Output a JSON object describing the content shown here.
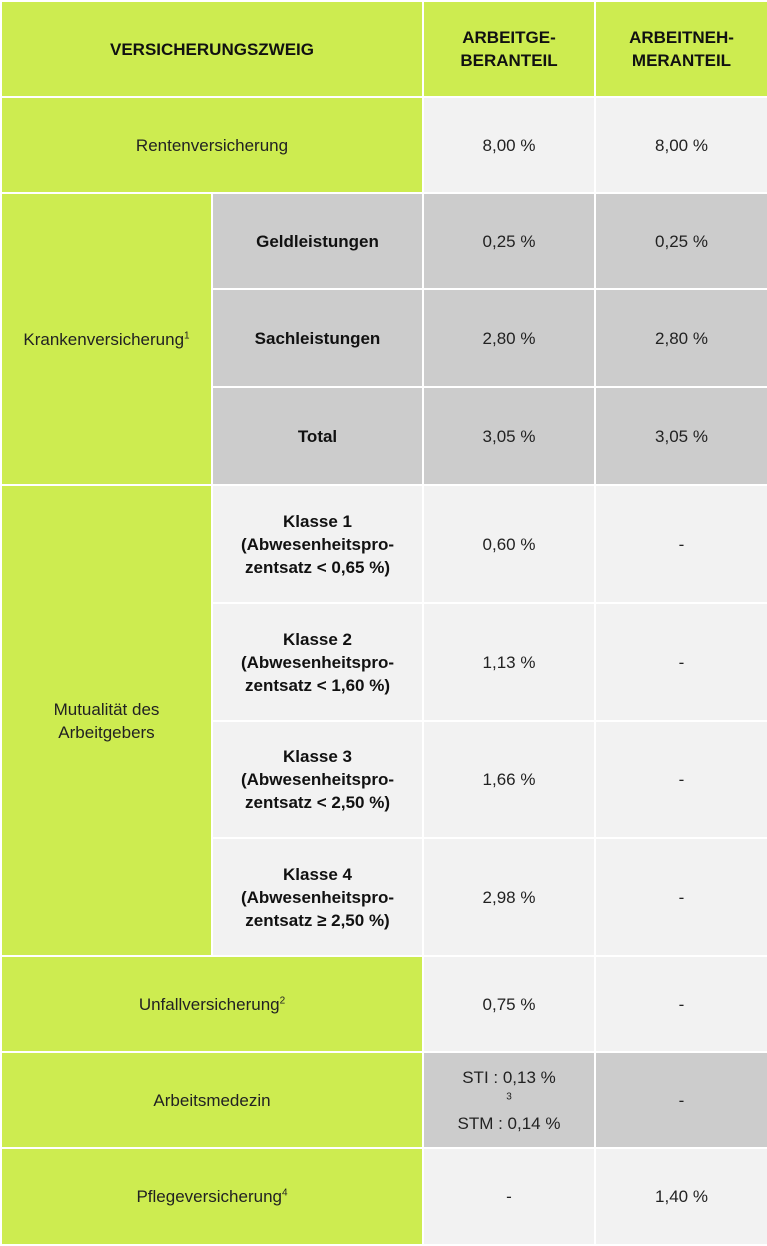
{
  "header": {
    "branch": "VERSICHERUNGSZWEIG",
    "employer": [
      "ARBEITGE-",
      "BERANTEIL"
    ],
    "employee": [
      "ARBEITNEH-",
      "MERANTEIL"
    ]
  },
  "rows": {
    "rente": {
      "label": "Rentenversicherung",
      "employer": "8,00 %",
      "employee": "8,00 %"
    },
    "kranken": {
      "label": "Krankenversicherung",
      "footnote": "1",
      "sub": [
        {
          "label": "Geldleistungen",
          "employer": "0,25 %",
          "employee": "0,25 %"
        },
        {
          "label": "Sachleistungen",
          "employer": "2,80 %",
          "employee": "2,80 %"
        },
        {
          "label": "Total",
          "employer": "3,05 %",
          "employee": "3,05 %"
        }
      ]
    },
    "mutualitaet": {
      "label": [
        "Mutualität des",
        "Arbeitgebers"
      ],
      "sub": [
        {
          "label": [
            "Klasse 1",
            "(Abwesenheitspro-",
            "zentsatz < 0,65 %)"
          ],
          "employer": "0,60 %",
          "employee": "-"
        },
        {
          "label": [
            "Klasse 2",
            "(Abwesenheitspro-",
            "zentsatz < 1,60 %)"
          ],
          "employer": "1,13 %",
          "employee": "-"
        },
        {
          "label": [
            "Klasse 3",
            "(Abwesenheitspro-",
            "zentsatz < 2,50 %)"
          ],
          "employer": "1,66 %",
          "employee": "-"
        },
        {
          "label": [
            "Klasse 4",
            "(Abwesenheitspro-",
            "zentsatz ≥ 2,50 %)"
          ],
          "employer": "2,98 %",
          "employee": "-"
        }
      ]
    },
    "unfall": {
      "label": "Unfallversicherung",
      "footnote": "2",
      "employer": "0,75 %",
      "employee": "-"
    },
    "arbeitsmedizin": {
      "label": "Arbeitsmedezin",
      "employer_sti": "STI : 0,13 %",
      "employer_sti_footnote": "3",
      "employer_stm": "STM : 0,14 %",
      "employee": "-"
    },
    "pflege": {
      "label": "Pflegeversicherung",
      "footnote": "4",
      "employer": "-",
      "employee": "1,40 %"
    }
  },
  "colors": {
    "accent_green": "#cdec50",
    "light_gray": "#f2f2f2",
    "mid_gray": "#cccccc"
  }
}
